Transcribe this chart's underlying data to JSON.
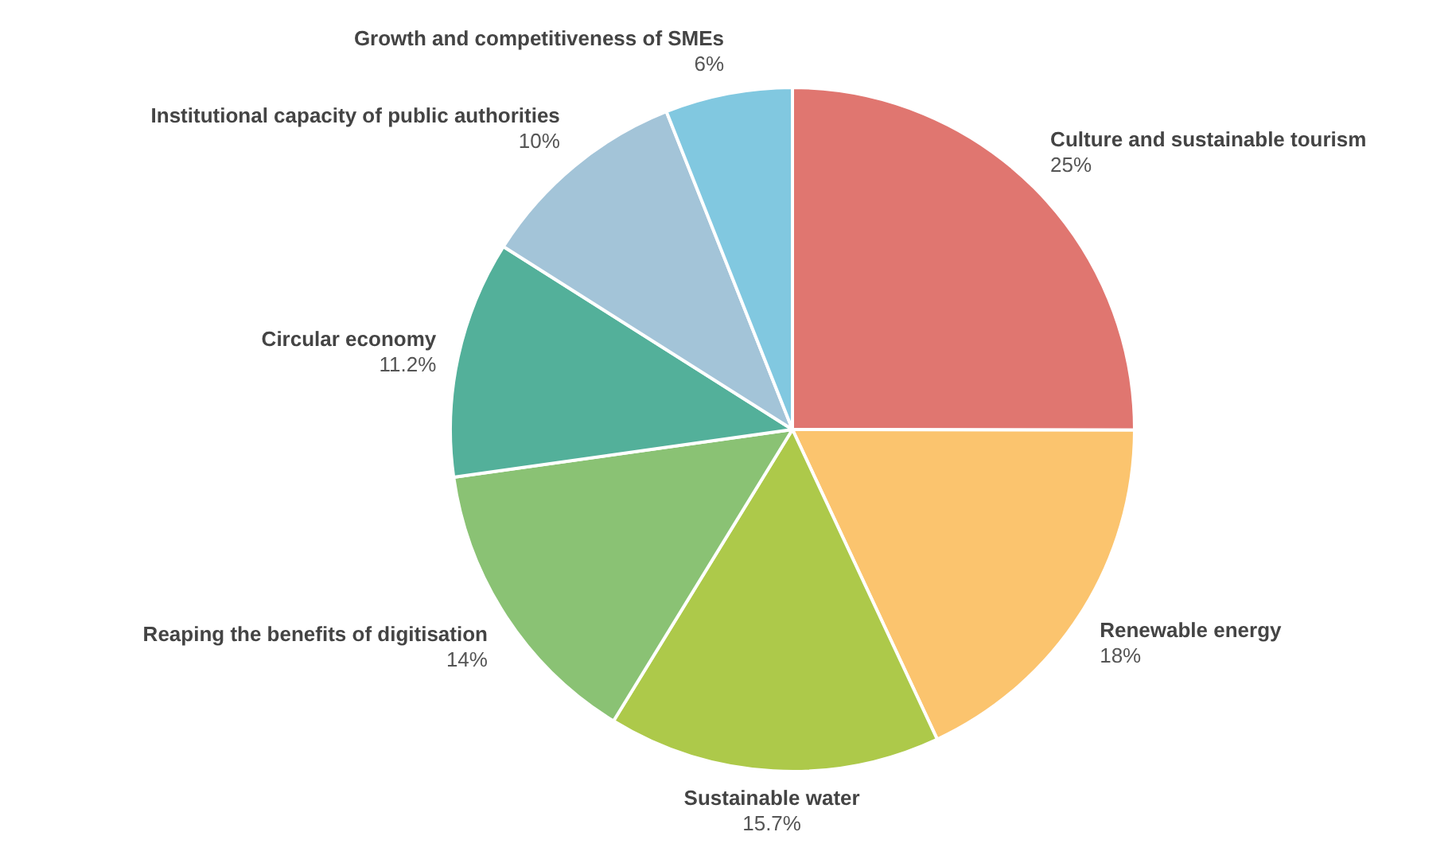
{
  "chart_data": {
    "type": "pie",
    "categories": [
      "Culture and sustainable tourism",
      "Renewable energy",
      "Sustainable water",
      "Reaping the benefits of digitisation",
      "Circular economy",
      "Institutional capacity of public authorities",
      "Growth and competitiveness of SMEs"
    ],
    "values": [
      25,
      18,
      15.7,
      14,
      11.2,
      10,
      6
    ],
    "value_labels": [
      "25%",
      "18%",
      "15.7%",
      "14%",
      "11.2%",
      "10%",
      "6%"
    ],
    "colors": [
      "#e07670",
      "#fbc46e",
      "#adc94a",
      "#8ac274",
      "#53b09a",
      "#a3c4d8",
      "#81c8e0"
    ]
  }
}
